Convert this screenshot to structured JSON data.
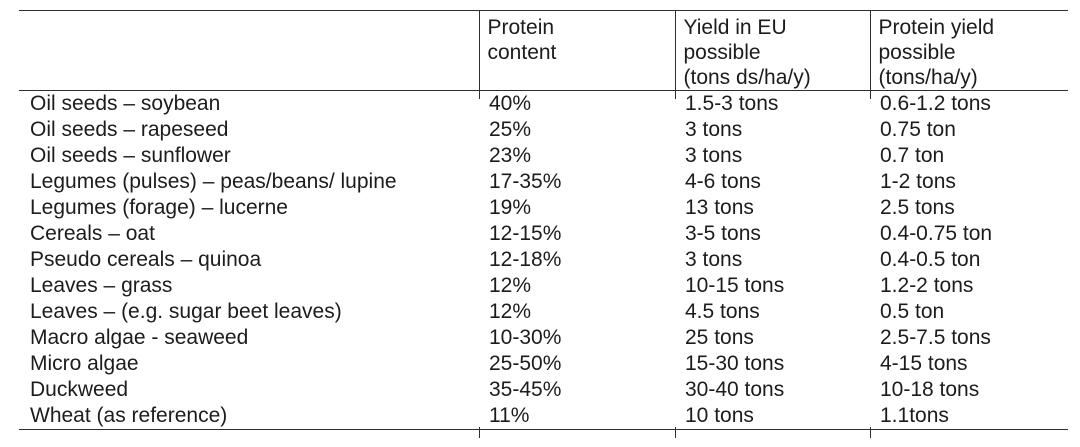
{
  "table": {
    "columns": [
      {
        "label": ""
      },
      {
        "label": "Protein\ncontent"
      },
      {
        "label": "Yield in EU\npossible\n(tons ds/ha/y)"
      },
      {
        "label": "Protein yield\npossible\n(tons/ha/y)"
      }
    ],
    "rows": [
      [
        "Oil seeds – soybean",
        "40%",
        "1.5-3 tons",
        "0.6-1.2 tons"
      ],
      [
        "Oil seeds – rapeseed",
        "25%",
        "3 tons",
        "0.75 ton"
      ],
      [
        "Oil seeds – sunflower",
        "23%",
        "3 tons",
        "0.7 ton"
      ],
      [
        "Legumes (pulses) – peas/beans/ lupine",
        "17-35%",
        "4-6 tons",
        "1-2 tons"
      ],
      [
        "Legumes (forage) – lucerne",
        "19%",
        "13 tons",
        "2.5 tons"
      ],
      [
        "Cereals – oat",
        "12-15%",
        "3-5 tons",
        "0.4-0.75 ton"
      ],
      [
        "Pseudo cereals – quinoa",
        "12-18%",
        "3 tons",
        "0.4-0.5 ton"
      ],
      [
        "Leaves – grass",
        "12%",
        "10-15 tons",
        "1.2-2 tons"
      ],
      [
        "Leaves – (e.g. sugar beet leaves)",
        "12%",
        "4.5 tons",
        "0.5 ton"
      ],
      [
        "Macro algae - seaweed",
        "10-30%",
        "25 tons",
        "2.5-7.5 tons"
      ],
      [
        "Micro algae",
        "25-50%",
        "15-30 tons",
        "4-15 tons"
      ],
      [
        "Duckweed",
        "35-45%",
        "30-40 tons",
        "10-18 tons"
      ],
      [
        "Wheat (as reference)",
        "11%",
        "10 tons",
        "1.1tons"
      ]
    ]
  },
  "colors": {
    "background": "#ffffff",
    "text": "#1c1c1c",
    "border": "#2e2e2e"
  }
}
